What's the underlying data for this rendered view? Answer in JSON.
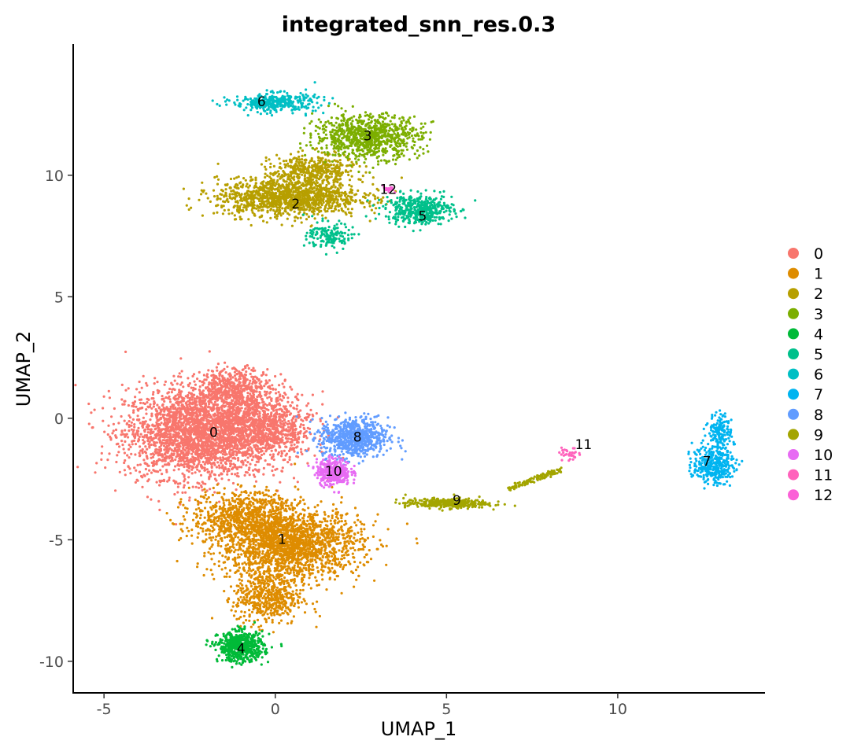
{
  "chart_data": {
    "type": "scatter",
    "title": "integrated_snn_res.0.3",
    "xlabel": "UMAP_1",
    "ylabel": "UMAP_2",
    "xlim": [
      -5.9,
      14.3
    ],
    "ylim": [
      -11.3,
      15.4
    ],
    "x_ticks": [
      -5,
      0,
      5,
      10
    ],
    "x_tick_labels": [
      "-5",
      "0",
      "5",
      "10"
    ],
    "y_ticks": [
      -10,
      -5,
      0,
      5,
      10
    ],
    "y_tick_labels": [
      "-10",
      "-5",
      "0",
      "5",
      "10"
    ],
    "grid": false,
    "legend_position": "right",
    "series": [
      {
        "name": "0",
        "color": "#F8766D",
        "label_position": [
          -1.8,
          -0.6
        ]
      },
      {
        "name": "1",
        "color": "#DE8C00",
        "label_position": [
          0.2,
          -5.0
        ]
      },
      {
        "name": "2",
        "color": "#B79F00",
        "label_position": [
          0.6,
          8.8
        ]
      },
      {
        "name": "3",
        "color": "#7CAE00",
        "label_position": [
          2.7,
          11.6
        ]
      },
      {
        "name": "4",
        "color": "#00BA38",
        "label_position": [
          -1.0,
          -9.5
        ]
      },
      {
        "name": "5",
        "color": "#00C08B",
        "label_position": [
          4.3,
          8.3
        ]
      },
      {
        "name": "6",
        "color": "#00BFC4",
        "label_position": [
          -0.4,
          13.0
        ]
      },
      {
        "name": "7",
        "color": "#00B4F0",
        "label_position": [
          12.6,
          -1.8
        ]
      },
      {
        "name": "8",
        "color": "#619CFF",
        "label_position": [
          2.4,
          -0.8
        ]
      },
      {
        "name": "9",
        "color": "#A3A500",
        "label_position": [
          5.3,
          -3.4
        ]
      },
      {
        "name": "10",
        "color": "#E76BF3",
        "label_position": [
          1.7,
          -2.2
        ]
      },
      {
        "name": "11",
        "color": "#FF62BC",
        "label_position": [
          9.0,
          -1.1
        ]
      },
      {
        "name": "12",
        "color": "#FB61D7",
        "label_position": [
          3.3,
          9.4
        ]
      }
    ]
  }
}
